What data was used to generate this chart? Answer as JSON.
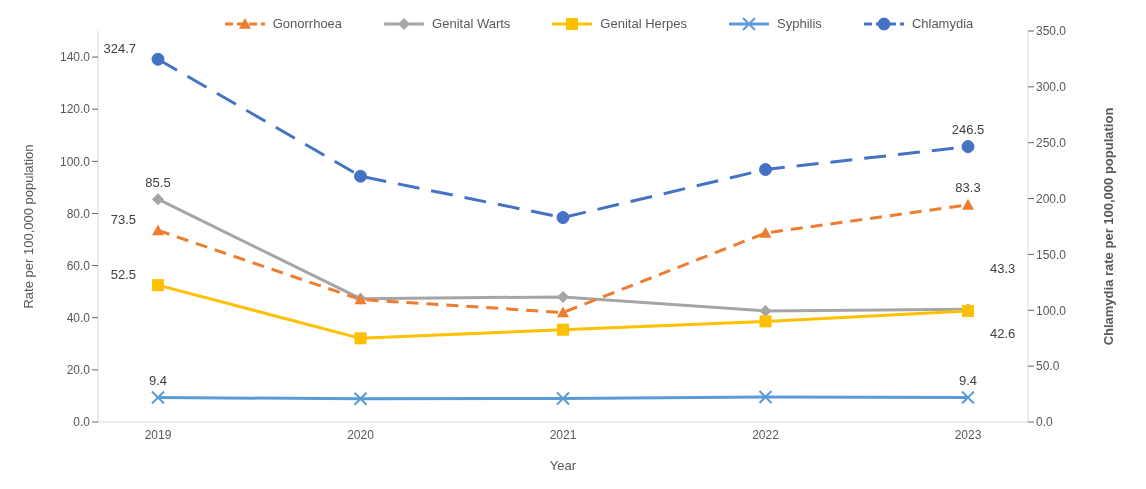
{
  "chart_data": {
    "type": "line",
    "categories": [
      "2019",
      "2020",
      "2021",
      "2022",
      "2023"
    ],
    "xlabel": "Year",
    "ylabel": "Rate per 100,000 population",
    "y2label": "Chlamydia rate per 100,000 population",
    "ylim": [
      0,
      150
    ],
    "yticks": [
      {
        "value": 0,
        "label": "0.0"
      },
      {
        "value": 20,
        "label": "20.0"
      },
      {
        "value": 40,
        "label": "40.0"
      },
      {
        "value": 60,
        "label": "60.0"
      },
      {
        "value": 80,
        "label": "80.0"
      },
      {
        "value": 100,
        "label": "100.0"
      },
      {
        "value": 120,
        "label": "120.0"
      },
      {
        "value": 140,
        "label": "140.0"
      }
    ],
    "y2lim": [
      0,
      350
    ],
    "y2ticks": [
      {
        "value": 0,
        "label": "0.0"
      },
      {
        "value": 50,
        "label": "50.0"
      },
      {
        "value": 100,
        "label": "100.0"
      },
      {
        "value": 150,
        "label": "150.0"
      },
      {
        "value": 200,
        "label": "200.0"
      },
      {
        "value": 250,
        "label": "250.0"
      },
      {
        "value": 300,
        "label": "300.0"
      },
      {
        "value": 350,
        "label": "350.0"
      }
    ],
    "grid": false,
    "legend": "top",
    "series": [
      {
        "name": "Gonorrhoea",
        "color": "#ed7d31",
        "marker": "triangle",
        "line_style": "dashed",
        "values": [
          73.5,
          47,
          42,
          72.5,
          83.3
        ],
        "value_labels": [
          "73.5",
          null,
          null,
          null,
          "83.3"
        ]
      },
      {
        "name": "Genital Warts",
        "color": "#a5a5a5",
        "marker": "diamond",
        "line_style": "solid",
        "values": [
          85.5,
          47.3,
          48,
          42.6,
          43.3
        ],
        "value_labels": [
          "85.5",
          null,
          null,
          null,
          "43.3"
        ]
      },
      {
        "name": "Genital Herpes",
        "color": "#ffc000",
        "marker": "square",
        "line_style": "solid",
        "values": [
          52.5,
          32.1,
          35.4,
          38.6,
          42.6
        ],
        "value_labels": [
          "52.5",
          null,
          null,
          null,
          "42.6"
        ]
      },
      {
        "name": "Syphilis",
        "color": "#5b9bd5",
        "marker": "cross",
        "line_style": "solid",
        "values": [
          9.4,
          8.9,
          9.0,
          9.6,
          9.4
        ],
        "value_labels": [
          "9.4",
          null,
          null,
          null,
          "9.4"
        ]
      },
      {
        "name": "Chlamydia",
        "color": "#4472c4",
        "marker": "circle",
        "line_style": "dashed",
        "axis": "y2",
        "values": [
          324.7,
          220,
          183,
          226,
          246.5
        ],
        "value_labels": [
          "324.7",
          null,
          null,
          null,
          "246.5"
        ]
      }
    ]
  }
}
